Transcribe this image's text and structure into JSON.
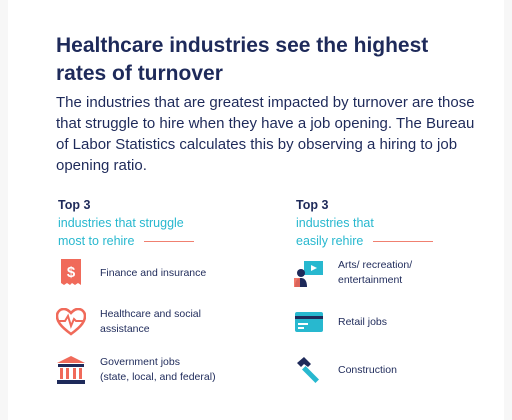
{
  "header": {
    "title": "Healthcare industries see the highest rates of turnover",
    "lead": "The industries that are greatest impacted by turnover are those that struggle to hire when they have a job opening. The Bureau of Labor Statistics calculates this by observing a hiring to job opening ratio."
  },
  "left": {
    "top3": "Top 3",
    "sub_line1": "industries that struggle",
    "sub_line2": "most to rehire",
    "items": [
      {
        "label": "Finance and insurance",
        "icon": "dollar-receipt-icon"
      },
      {
        "label": "Healthcare and social\nassistance",
        "icon": "heartbeat-icon"
      },
      {
        "label": "Government jobs\n(state, local, and federal)",
        "icon": "government-building-icon"
      }
    ]
  },
  "right": {
    "top3": "Top 3",
    "sub_line1": "industries that",
    "sub_line2": "easily rehire",
    "items": [
      {
        "label": "Arts/ recreation/\nentertainment",
        "icon": "presenter-screen-icon"
      },
      {
        "label": "Retail jobs",
        "icon": "credit-card-icon"
      },
      {
        "label": "Construction",
        "icon": "hammer-icon"
      }
    ]
  },
  "colors": {
    "navy": "#1e2a5a",
    "teal": "#28b8cf",
    "coral": "#f06a5a",
    "rule": "#f08070"
  }
}
